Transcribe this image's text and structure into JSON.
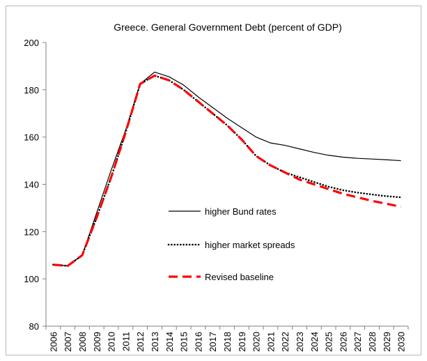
{
  "chart_data": {
    "type": "line",
    "title": "Greece.  General Government Debt (percent of GDP)",
    "categories": [
      "2006",
      "2007",
      "2008",
      "2009",
      "2010",
      "2011",
      "2012",
      "2013",
      "2014",
      "2015",
      "2016",
      "2017",
      "2018",
      "2019",
      "2020",
      "2021",
      "2022",
      "2023",
      "2024",
      "2025",
      "2026",
      "2027",
      "2028",
      "2029",
      "2030"
    ],
    "ylim": [
      80,
      200
    ],
    "yticks": [
      80,
      100,
      120,
      140,
      160,
      180,
      200
    ],
    "series": [
      {
        "name": "higher Bund rates",
        "color": "#000000",
        "style": "solid",
        "values": [
          106,
          105.5,
          110,
          128,
          146,
          163,
          182.5,
          187.5,
          185.5,
          182,
          177,
          172.5,
          168,
          164,
          160,
          157.5,
          156.5,
          155,
          153.5,
          152.3,
          151.5,
          151,
          150.7,
          150.4,
          150
        ]
      },
      {
        "name": "higher market spreads",
        "color": "#000000",
        "style": "dotted",
        "values": [
          106,
          105.5,
          110,
          126,
          143,
          162,
          182.5,
          186,
          184,
          180,
          175,
          170,
          165,
          159,
          152,
          148,
          145,
          143,
          141,
          139,
          137.5,
          136.5,
          135.7,
          135,
          134.5
        ]
      },
      {
        "name": "Revised baseline",
        "color": "#ff0000",
        "style": "dashed",
        "values": [
          106,
          105.5,
          110,
          126,
          143,
          162,
          182.5,
          186,
          184,
          180,
          175,
          170,
          165,
          159,
          152,
          148,
          145,
          142,
          140,
          138,
          136,
          134.5,
          133,
          131.8,
          130.5
        ]
      }
    ],
    "grid": false,
    "legend_position": "inside-bottom-center"
  }
}
